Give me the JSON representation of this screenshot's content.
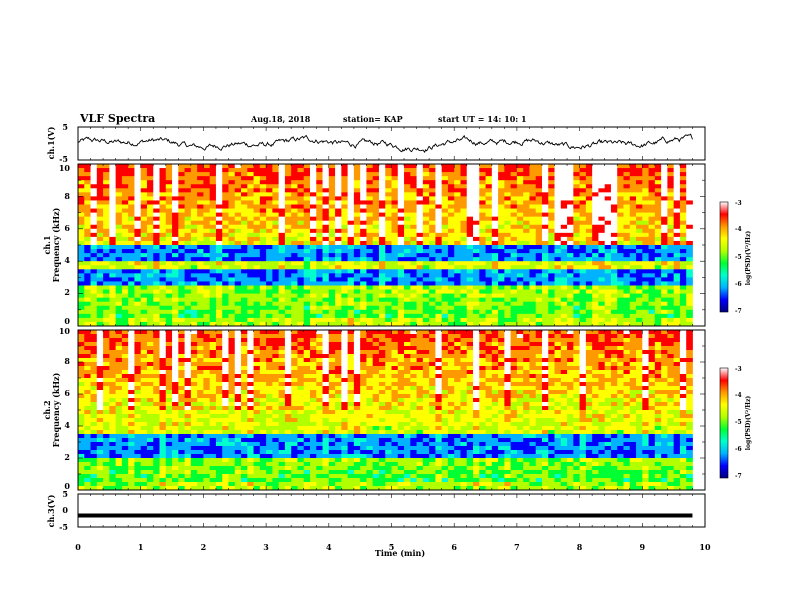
{
  "header": {
    "title": "VLF Spectra",
    "date": "Aug.18, 2018",
    "station": "station= KAP",
    "start": "start  UT  =   14: 10: 1"
  },
  "chart_data": [
    {
      "id": "ch1-waveform",
      "type": "line",
      "ylabel": "ch.1(V)",
      "ylim": [
        -5,
        5
      ],
      "yticks": [
        "5",
        "-5"
      ],
      "xlim": [
        0,
        10
      ],
      "x_end": 9.8,
      "baseline": 0,
      "amplitude": 1.4
    },
    {
      "id": "ch1-spectrogram",
      "type": "heatmap",
      "ylabel": "ch.1\nFrequency  (kHz)",
      "ylim": [
        0,
        10
      ],
      "yticks": [
        "0",
        "2",
        "4",
        "6",
        "8",
        "10"
      ],
      "xlim": [
        0,
        10
      ],
      "x_end": 9.8,
      "colorbar": {
        "label": "log(PSD)(V²/Hz)",
        "range": [
          -7,
          -3
        ],
        "ticks": [
          "-3",
          "-4",
          "-5",
          "-6",
          "-7"
        ]
      },
      "quiet_bands_kHz": [
        [
          2.6,
          3.5
        ],
        [
          3.9,
          4.9
        ]
      ]
    },
    {
      "id": "ch2-spectrogram",
      "type": "heatmap",
      "ylabel": "ch.2\nFrequency  (kHz)",
      "ylim": [
        0,
        10
      ],
      "yticks": [
        "0",
        "2",
        "4",
        "6",
        "8",
        "10"
      ],
      "xlim": [
        0,
        10
      ],
      "x_end": 9.8,
      "colorbar": {
        "label": "log(PSD)(V²/Hz)",
        "range": [
          -7,
          -3
        ],
        "ticks": [
          "-3",
          "-4",
          "-5",
          "-6",
          "-7"
        ]
      },
      "quiet_bands_kHz": [
        [
          2.1,
          3.6
        ]
      ]
    },
    {
      "id": "ch3-waveform",
      "type": "line",
      "ylabel": "ch.3(V)",
      "ylim": [
        -5,
        5
      ],
      "yticks": [
        "5",
        "0",
        "-5"
      ],
      "xlim": [
        0,
        10
      ],
      "x_end": 9.8,
      "constant_value": -1.5
    }
  ],
  "x_axis": {
    "label": "Time  (min)",
    "ticks": [
      "0",
      "1",
      "2",
      "3",
      "4",
      "5",
      "6",
      "7",
      "8",
      "9",
      "10"
    ]
  },
  "colors": {
    "line": "#000000",
    "colormap": [
      "#00007f",
      "#0000ff",
      "#00b2ff",
      "#00ffcc",
      "#00ff33",
      "#b2ff00",
      "#ffff00",
      "#ff9900",
      "#ff0000",
      "#ffffff"
    ]
  }
}
